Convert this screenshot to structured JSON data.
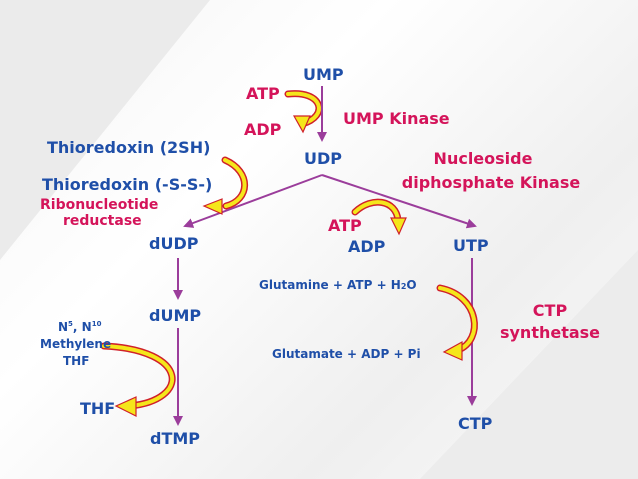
{
  "colors": {
    "metabolite": "#1f4fa8",
    "enzyme": "#d4145a",
    "arrow_line": "#9b3d9b",
    "curved_arrow_fill": "#f5e61a",
    "curved_arrow_stroke": "#d0202a"
  },
  "labels": {
    "ump": "UMP",
    "atp_top": "ATP",
    "adp_top": "ADP",
    "ump_kinase": "UMP Kinase",
    "udp": "UDP",
    "ndp_kinase_line1": "Nucleoside",
    "ndp_kinase_line2": "diphosphate Kinase",
    "thioredoxin_2sh": "Thioredoxin (2SH)",
    "thioredoxin_ss": "Thioredoxin (-S-S-)",
    "rnr_line1": "Ribonucleotide",
    "rnr_line2": "reductase",
    "atp_mid": "ATP",
    "adp_mid": "ADP",
    "dudp": "dUDP",
    "utp": "UTP",
    "glutamine_line": "Glutamine + ATP + H",
    "glutamine_sub": "2",
    "glutamine_end": "O",
    "ctp_synthetase_line1": "CTP",
    "ctp_synthetase_line2": "synthetase",
    "dump": "dUMP",
    "n5n10_prefix": "N",
    "n5_sup": "5",
    "n5n10_mid": ", N",
    "n10_sup": "10",
    "methylene": "Methylene",
    "thf_donor": "THF",
    "glutamate_line": "Glutamate + ADP + Pi",
    "thf": "THF",
    "ctp": "CTP",
    "dtmp": "dTMP"
  }
}
